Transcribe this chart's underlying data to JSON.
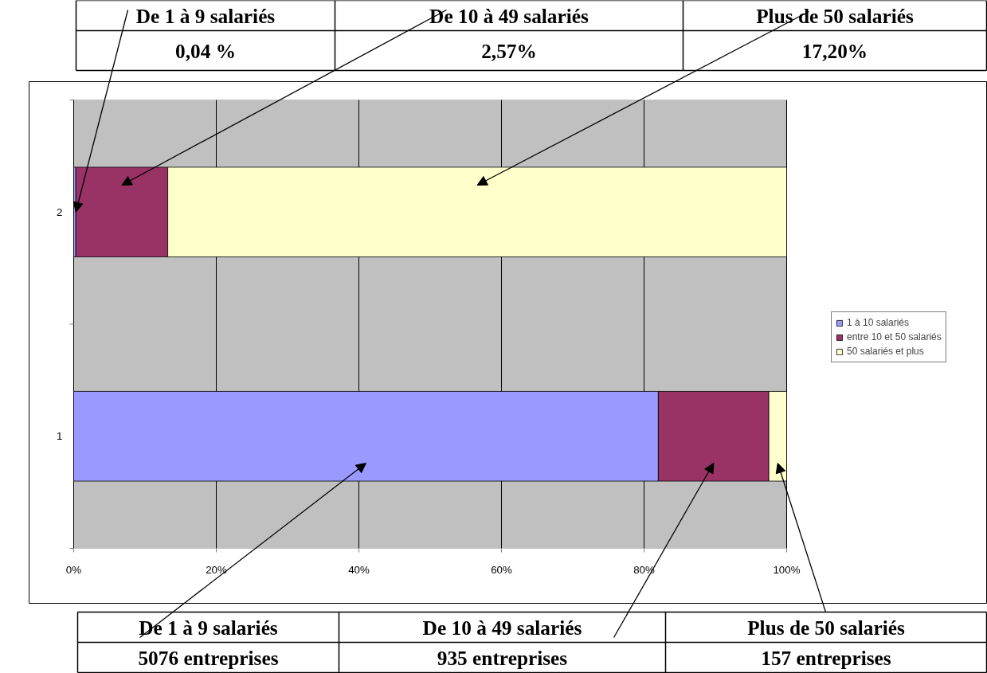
{
  "chart_data": {
    "type": "bar",
    "orientation": "horizontal",
    "stacked": true,
    "categories": [
      "2",
      "1"
    ],
    "series": [
      {
        "name": "1 à 10 salariés",
        "color": "#9999ff",
        "values": [
          0.3,
          82.0
        ]
      },
      {
        "name": "entre 10 et 50 salariés",
        "color": "#993366",
        "values": [
          12.9,
          15.5
        ]
      },
      {
        "name": "50 salariés et plus",
        "color": "#ffffcc",
        "values": [
          86.8,
          2.5
        ]
      }
    ],
    "xlim": [
      0,
      100
    ],
    "xticks": [
      {
        "value": 0,
        "label": "0%"
      },
      {
        "value": 20,
        "label": "20%"
      },
      {
        "value": 40,
        "label": "40%"
      },
      {
        "value": 60,
        "label": "60%"
      },
      {
        "value": 80,
        "label": "80%"
      },
      {
        "value": 100,
        "label": "100%"
      }
    ],
    "grid": "x",
    "legend": "right",
    "annotations": [
      {
        "text": "De 1 à 9 salariés",
        "x": 0.3,
        "y": "2"
      },
      "De 10 à 49 salariés",
      "Plus de 50 salariés",
      "0,04 %",
      "2,57%",
      "17,20%",
      "De 1 à 9 salariés",
      "De 10 à 49 salariés",
      "Plus de 50 salariés",
      "5076 entreprises",
      "935 entreprises",
      "157 entreprises"
    ]
  }
}
